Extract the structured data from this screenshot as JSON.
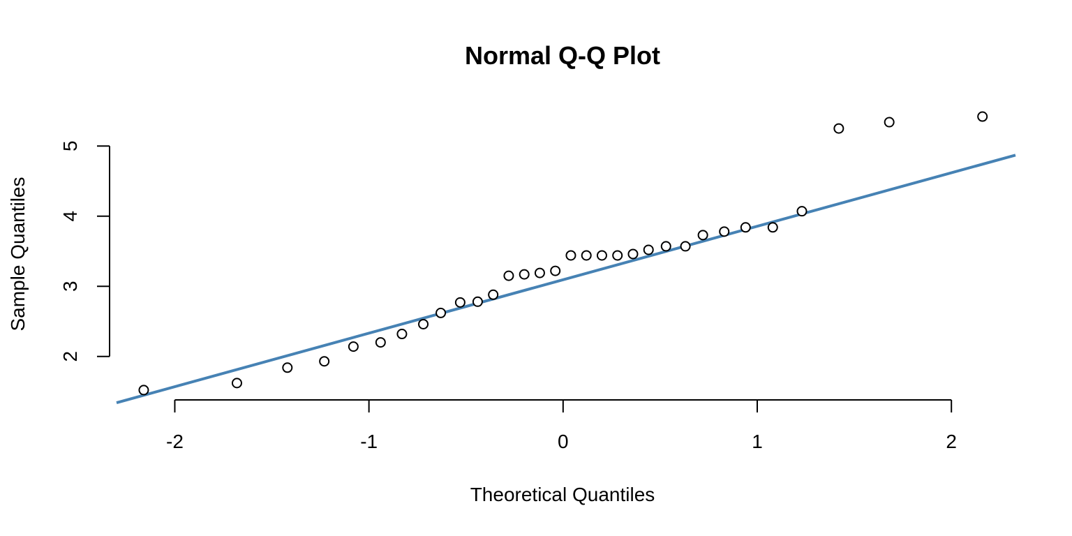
{
  "chart_data": {
    "type": "scatter",
    "title": "Normal Q-Q Plot",
    "xlabel": "Theoretical Quantiles",
    "ylabel": "Sample Quantiles",
    "xticks": [
      -2,
      -1,
      0,
      1,
      2
    ],
    "yticks": [
      2,
      3,
      4,
      5
    ],
    "xlim": [
      -2.3,
      2.33
    ],
    "ylim": [
      1.38,
      5.45
    ],
    "grid": false,
    "reference_line": {
      "color": "#4682B4",
      "x": [
        -2.3,
        2.33
      ],
      "y": [
        1.34,
        4.87
      ]
    },
    "points": {
      "x": [
        -2.16,
        -1.68,
        -1.42,
        -1.23,
        -1.08,
        -0.94,
        -0.83,
        -0.72,
        -0.63,
        -0.53,
        -0.44,
        -0.36,
        -0.28,
        -0.2,
        -0.12,
        -0.04,
        0.04,
        0.12,
        0.2,
        0.28,
        0.36,
        0.44,
        0.53,
        0.63,
        0.72,
        0.83,
        0.94,
        1.08,
        1.23,
        1.42,
        1.68,
        2.16
      ],
      "y": [
        1.52,
        1.62,
        1.84,
        1.93,
        2.14,
        2.2,
        2.32,
        2.46,
        2.62,
        2.77,
        2.78,
        2.88,
        3.15,
        3.17,
        3.19,
        3.22,
        3.44,
        3.44,
        3.44,
        3.44,
        3.46,
        3.52,
        3.57,
        3.57,
        3.73,
        3.78,
        3.84,
        3.84,
        4.07,
        5.25,
        5.34,
        5.42
      ]
    }
  }
}
